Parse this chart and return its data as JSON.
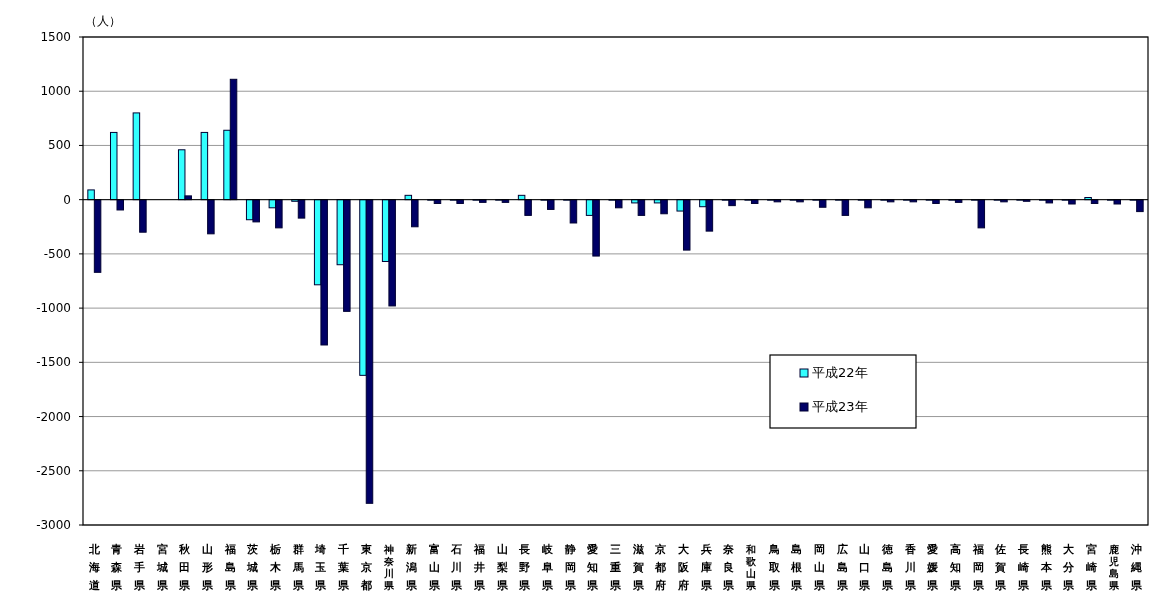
{
  "chart_data": {
    "type": "bar",
    "ylabel": "（人）",
    "categories": [
      "北海道",
      "青森県",
      "岩手県",
      "宮城県",
      "秋田県",
      "山形県",
      "福島県",
      "茨城県",
      "栃木県",
      "群馬県",
      "埼玉県",
      "千葉県",
      "東京都",
      "神奈川県",
      "新潟県",
      "富山県",
      "石川県",
      "福井県",
      "山梨県",
      "長野県",
      "岐阜県",
      "静岡県",
      "愛知県",
      "三重県",
      "滋賀県",
      "京都府",
      "大阪府",
      "兵庫県",
      "奈良県",
      "和歌山県",
      "鳥取県",
      "島根県",
      "岡山県",
      "広島県",
      "山口県",
      "徳島県",
      "香川県",
      "愛媛県",
      "高知県",
      "福岡県",
      "佐賀県",
      "長崎県",
      "熊本県",
      "大分県",
      "宮崎県",
      "鹿児島県",
      "沖縄県"
    ],
    "series": [
      {
        "name": "平成22年",
        "color": "#33ffff",
        "values": [
          90,
          620,
          800,
          null,
          460,
          620,
          640,
          -185,
          -75,
          -15,
          -785,
          -600,
          -1620,
          -570,
          40,
          0,
          0,
          0,
          0,
          40,
          0,
          0,
          -145,
          0,
          -30,
          -30,
          -105,
          -65,
          0,
          0,
          0,
          0,
          0,
          0,
          0,
          0,
          0,
          0,
          0,
          0,
          0,
          0,
          0,
          0,
          20,
          0,
          0
        ]
      },
      {
        "name": "平成23年",
        "color": "#000066",
        "values": [
          -670,
          -95,
          -300,
          null,
          35,
          -315,
          1110,
          -205,
          -260,
          -170,
          -1340,
          -1030,
          -2800,
          -980,
          -250,
          -35,
          -35,
          -25,
          -25,
          -145,
          -90,
          -215,
          -520,
          -75,
          -145,
          -130,
          -465,
          -290,
          -55,
          -35,
          -20,
          -20,
          -70,
          -145,
          -75,
          -20,
          -20,
          -35,
          -25,
          -260,
          -20,
          -15,
          -30,
          -40,
          -35,
          -40,
          -110
        ]
      }
    ],
    "ylim": [
      -3000,
      1500
    ],
    "yticks": [
      -3000,
      -2500,
      -2000,
      -1500,
      -1000,
      -500,
      0,
      500,
      1000,
      1500
    ],
    "grid": "y",
    "legend": "right"
  }
}
